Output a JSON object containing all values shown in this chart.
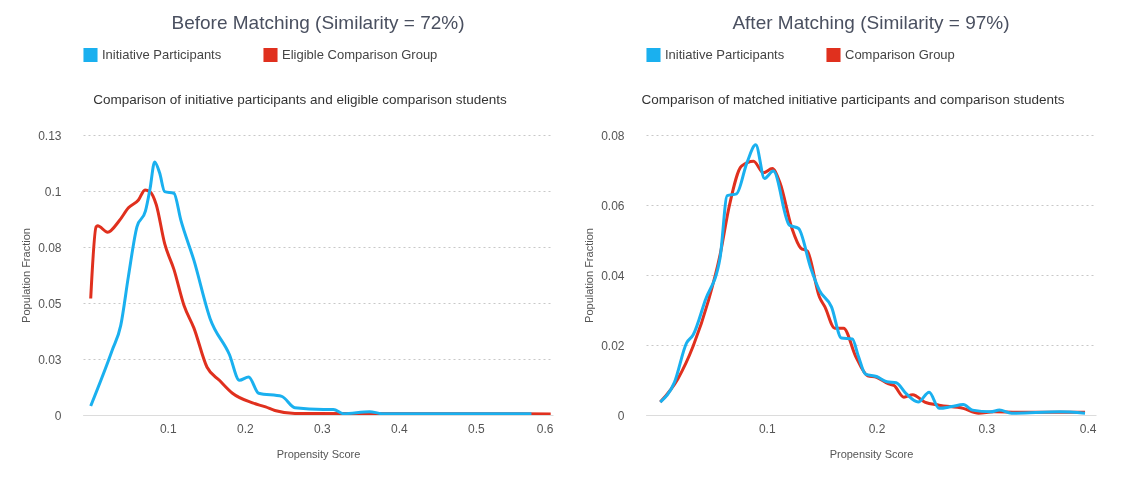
{
  "chart_data": [
    {
      "type": "line",
      "title": "Before Matching (Similarity = 72%)",
      "subtitle": "Comparison of initiative participants and eligible comparison students",
      "xlabel": "Propensity Score",
      "ylabel": "Population Fraction",
      "xlim": [
        -0.01,
        0.6
      ],
      "xticks": [
        0.1,
        0.2,
        0.3,
        0.4,
        0.5,
        0.6
      ],
      "ylim": [
        0,
        0.125
      ],
      "yticks": [
        0,
        {
          "value": 0.025,
          "label": "0.03"
        },
        0.05,
        {
          "value": 0.075,
          "label": "0.08"
        },
        0.1,
        {
          "value": 0.125,
          "label": "0.13"
        }
      ],
      "grid": "y",
      "legend": "top",
      "marker": "none",
      "line_style": "solid",
      "series": [
        {
          "name": "Initiative Participants",
          "color": "#1ab0ef",
          "x": [
            0,
            0.028,
            0.039,
            0.049,
            0.06,
            0.071,
            0.077,
            0.083,
            0.0895,
            0.096,
            0.108,
            0.117,
            0.134,
            0.155,
            0.18,
            0.193,
            0.205,
            0.218,
            0.248,
            0.265,
            0.302,
            0.315,
            0.328,
            0.362,
            0.378,
            0.572
          ],
          "values": [
            0.004,
            0.029,
            0.04,
            0.062,
            0.084,
            0.091,
            0.101,
            0.113,
            0.108,
            0.0997,
            0.099,
            0.087,
            0.069,
            0.043,
            0.027,
            0.0155,
            0.017,
            0.0097,
            0.0083,
            0.0032,
            0.0025,
            0.0025,
            0.0006,
            0.0015,
            0.0006,
            0.0006
          ]
        },
        {
          "name": "Eligible Comparison Group",
          "color": "#e0301e",
          "x": [
            0,
            0.007,
            0.009,
            0.022,
            0.037,
            0.049,
            0.062,
            0.0705,
            0.077,
            0.085,
            0.096,
            0.108,
            0.121,
            0.134,
            0.151,
            0.167,
            0.184,
            0.21,
            0.227,
            0.239,
            0.265,
            0.597
          ],
          "values": [
            0.052,
            0.084,
            0.0845,
            0.0816,
            0.0867,
            0.0925,
            0.096,
            0.1005,
            0.0997,
            0.094,
            0.0765,
            0.065,
            0.049,
            0.0388,
            0.0213,
            0.0155,
            0.0097,
            0.0054,
            0.0036,
            0.002,
            0.0007,
            0.0005
          ]
        }
      ]
    },
    {
      "type": "line",
      "title": "After Matching (Similarity = 97%)",
      "subtitle": "Comparison of matched initiative participants and comparison students",
      "xlabel": "Propensity Score",
      "ylabel": "Population Fraction",
      "xlim": [
        -0.01,
        0.4
      ],
      "xticks": [
        0.1,
        0.2,
        0.3,
        0.4
      ],
      "ylim": [
        0,
        0.08
      ],
      "yticks": [
        0,
        0.02,
        0.04,
        0.06,
        0.08
      ],
      "grid": "y",
      "legend": "top",
      "marker": "none",
      "line_style": "solid",
      "series": [
        {
          "name": "Initiative Participants",
          "color": "#1ab0ef",
          "x": [
            0.003,
            0.016,
            0.027,
            0.033,
            0.044,
            0.0575,
            0.064,
            0.0725,
            0.082,
            0.09,
            0.098,
            0.106,
            0.1205,
            0.129,
            0.14,
            0.148,
            0.159,
            0.168,
            0.178,
            0.1835,
            0.19,
            0.2,
            0.2095,
            0.218,
            0.227,
            0.238,
            0.248,
            0.257,
            0.2685,
            0.279,
            0.2875,
            0.304,
            0.312,
            0.323,
            0.367,
            0.39
          ],
          "values": [
            0.0037,
            0.0094,
            0.0206,
            0.0229,
            0.0328,
            0.0449,
            0.0627,
            0.0632,
            0.0721,
            0.0772,
            0.0676,
            0.0697,
            0.0543,
            0.0533,
            0.0421,
            0.0356,
            0.0309,
            0.022,
            0.0217,
            0.0168,
            0.0117,
            0.011,
            0.0095,
            0.0092,
            0.0061,
            0.0037,
            0.0065,
            0.0019,
            0.0024,
            0.003,
            0.0014,
            0.0009,
            0.0014,
            0.0005,
            0.0009,
            0.0005
          ]
        },
        {
          "name": "Comparison Group",
          "color": "#e0301e",
          "x": [
            0.003,
            0.019,
            0.033,
            0.047,
            0.0575,
            0.066,
            0.077,
            0.088,
            0.097,
            0.105,
            0.112,
            0.123,
            0.131,
            0.137,
            0.148,
            0.153,
            0.162,
            0.17,
            0.181,
            0.192,
            0.2,
            0.211,
            0.216,
            0.225,
            0.233,
            0.244,
            0.257,
            0.279,
            0.293,
            0.307,
            0.329,
            0.39
          ],
          "values": [
            0.0037,
            0.0103,
            0.0197,
            0.0328,
            0.0458,
            0.0599,
            0.0711,
            0.0725,
            0.0692,
            0.0704,
            0.0664,
            0.0533,
            0.0477,
            0.0468,
            0.0337,
            0.0309,
            0.0248,
            0.0248,
            0.0168,
            0.0112,
            0.0108,
            0.0089,
            0.0084,
            0.0051,
            0.0058,
            0.0037,
            0.0028,
            0.0019,
            0.0005,
            0.0009,
            0.0008,
            0.0008
          ]
        }
      ]
    }
  ]
}
